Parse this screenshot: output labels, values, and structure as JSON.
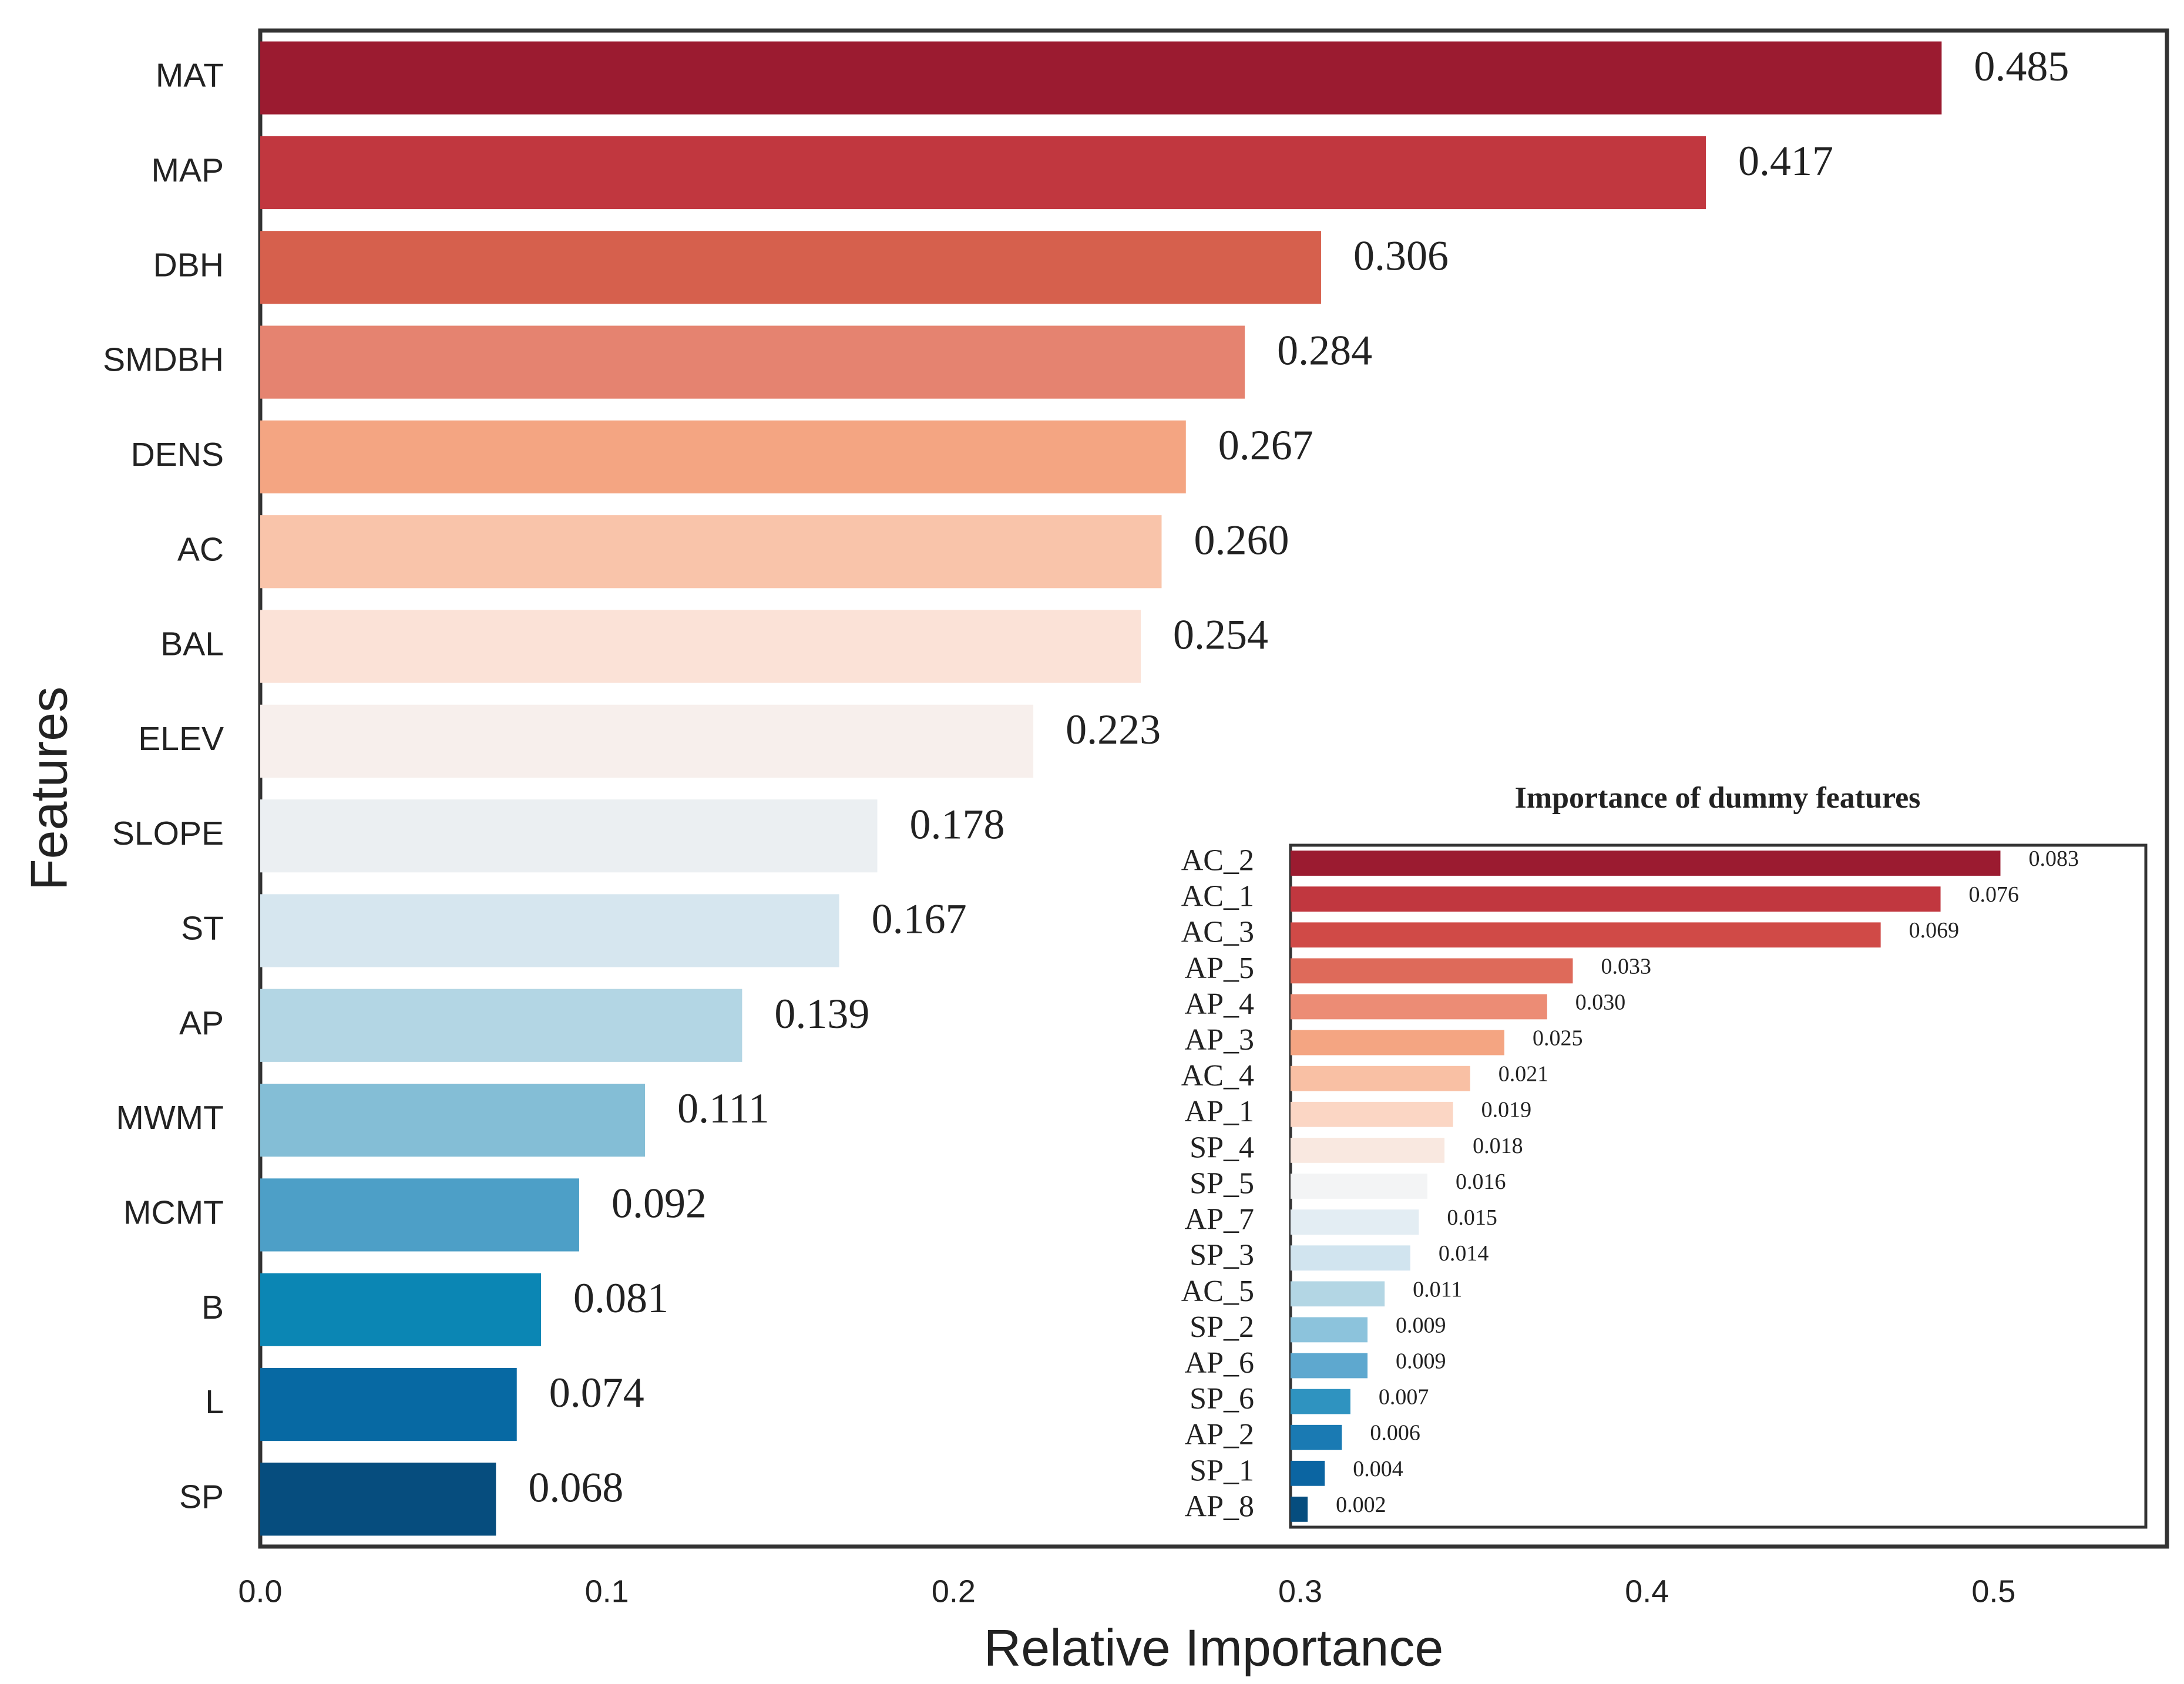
{
  "chart_data": [
    {
      "type": "bar",
      "orientation": "horizontal",
      "x_label": "Relative Importance",
      "y_label": "Features",
      "categories": [
        "MAT",
        "MAP",
        "DBH",
        "SMDBH",
        "DENS",
        "AC",
        "BAL",
        "ELEV",
        "SLOPE",
        "ST",
        "AP",
        "MWMT",
        "MCMT",
        "B",
        "L",
        "SP"
      ],
      "values": [
        0.485,
        0.417,
        0.306,
        0.284,
        0.267,
        0.26,
        0.254,
        0.223,
        0.178,
        0.167,
        0.139,
        0.111,
        0.092,
        0.081,
        0.074,
        0.068
      ],
      "value_labels": [
        "0.485",
        "0.417",
        "0.306",
        "0.284",
        "0.267",
        "0.260",
        "0.254",
        "0.223",
        "0.178",
        "0.167",
        "0.139",
        "0.111",
        "0.092",
        "0.081",
        "0.074",
        "0.068"
      ],
      "colors": [
        "#9b1b30",
        "#c1373f",
        "#d6604d",
        "#e58370",
        "#f4a582",
        "#f9c4aa",
        "#fbe2d7",
        "#f7efec",
        "#ebeff2",
        "#d6e6ef",
        "#b3d6e4",
        "#84bed6",
        "#4d9fc7",
        "#0b86b4",
        "#0769a3",
        "#064d7e"
      ],
      "xlim": [
        0,
        0.55
      ],
      "xticks": [
        {
          "value": 0,
          "label": "0.0"
        },
        0.1,
        0.2,
        0.3,
        0.4,
        0.5
      ]
    },
    {
      "type": "bar",
      "orientation": "horizontal",
      "title": "Importance of dummy features",
      "categories": [
        "AC_2",
        "AC_1",
        "AC_3",
        "AP_5",
        "AP_4",
        "AP_3",
        "AC_4",
        "AP_1",
        "SP_4",
        "SP_5",
        "AP_7",
        "SP_3",
        "AC_5",
        "SP_2",
        "AP_6",
        "SP_6",
        "AP_2",
        "SP_1",
        "AP_8"
      ],
      "values": [
        0.083,
        0.076,
        0.069,
        0.033,
        0.03,
        0.025,
        0.021,
        0.019,
        0.018,
        0.016,
        0.015,
        0.014,
        0.011,
        0.009,
        0.009,
        0.007,
        0.006,
        0.004,
        0.002
      ],
      "value_labels": [
        "0.083",
        "0.076",
        "0.069",
        "0.033",
        "0.030",
        "0.025",
        "0.021",
        "0.019",
        "0.018",
        "0.016",
        "0.015",
        "0.014",
        "0.011",
        "0.009",
        "0.009",
        "0.007",
        "0.006",
        "0.004",
        "0.002"
      ],
      "colors": [
        "#9b1b30",
        "#c1373f",
        "#d04a47",
        "#de6a5a",
        "#ec8c75",
        "#f4a582",
        "#f9c0a4",
        "#fbd6c4",
        "#f9e8e0",
        "#f3f4f5",
        "#e3edf3",
        "#d1e4ef",
        "#b3d6e4",
        "#8cc3dc",
        "#5ea8cf",
        "#2f93c0",
        "#1a7ab3",
        "#0b65a2",
        "#064d7e"
      ],
      "xlim": [
        0,
        0.1
      ]
    }
  ]
}
